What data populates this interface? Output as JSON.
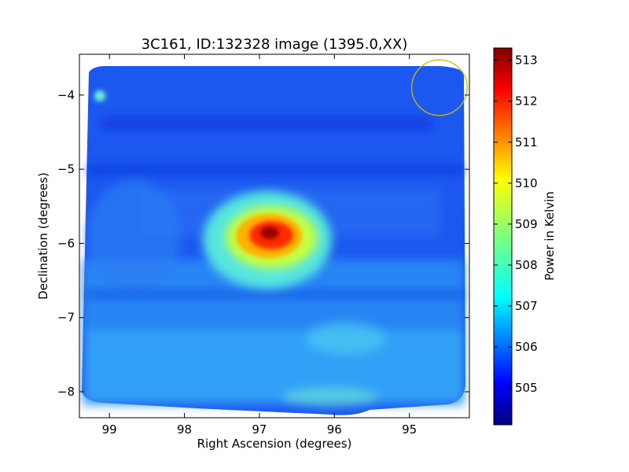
{
  "chart_data": {
    "type": "heatmap",
    "title": "3C161, ID:132328 image (1395.0,XX)",
    "xlabel": "Right Ascension (degrees)",
    "ylabel": "Declination (degrees)",
    "xlim": [
      99.4,
      94.2
    ],
    "ylim": [
      -8.35,
      -3.45
    ],
    "x_ticks": [
      99,
      98,
      97,
      96,
      95
    ],
    "y_ticks": [
      -4,
      -5,
      -6,
      -7,
      -8
    ],
    "colorbar": {
      "label": "Power in Kelvin",
      "range": [
        504.1,
        513.3
      ],
      "ticks": [
        505,
        506,
        507,
        508,
        509,
        510,
        511,
        512,
        513
      ],
      "colormap": "jet"
    },
    "background_level": 506.0,
    "features": [
      {
        "kind": "peak",
        "ra": 96.85,
        "dec": -5.9,
        "value": 513.1
      },
      {
        "kind": "point",
        "ra": 99.05,
        "dec": -4.03,
        "value": 507.8
      }
    ],
    "circle": {
      "ra": 94.6,
      "dec": -3.9,
      "radius_deg": 0.37,
      "color": "#bfbf00"
    },
    "grid": false
  }
}
